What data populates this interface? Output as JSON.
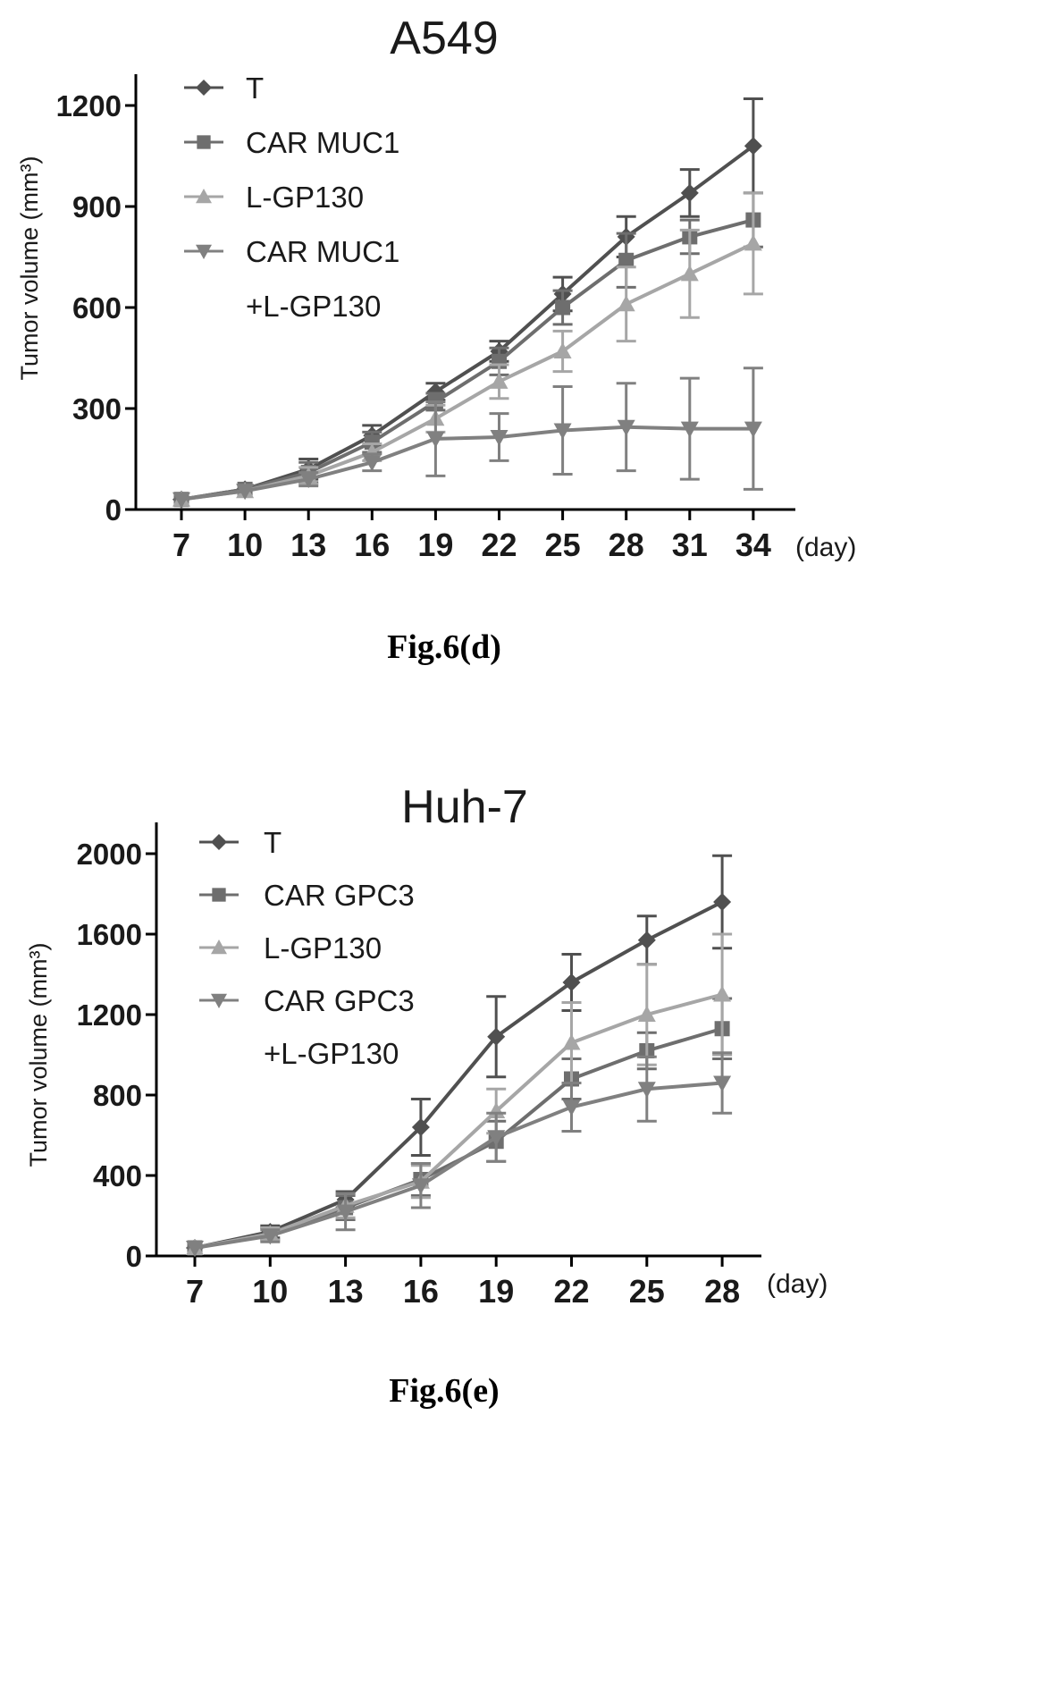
{
  "chart_data": [
    {
      "type": "line",
      "title": "A549",
      "ylabel": "Tumor volume (mm³)",
      "xunit": "(day)",
      "caption": "Fig.6(d)",
      "x": [
        7,
        10,
        13,
        16,
        19,
        22,
        25,
        28,
        31,
        34
      ],
      "yticks": [
        0,
        300,
        600,
        900,
        1200
      ],
      "ylim": [
        0,
        1200
      ],
      "legend_position": "top-left",
      "series": [
        {
          "name": "T",
          "marker": "diamond",
          "color": "#505050",
          "values": [
            30,
            60,
            120,
            220,
            350,
            470,
            640,
            810,
            940,
            1080
          ],
          "errors": [
            0,
            0,
            30,
            30,
            25,
            30,
            50,
            60,
            70,
            140
          ]
        },
        {
          "name": "CAR MUC1",
          "marker": "square",
          "color": "#6e6e6e",
          "values": [
            30,
            60,
            110,
            200,
            320,
            440,
            600,
            740,
            810,
            860
          ],
          "errors": [
            0,
            0,
            30,
            30,
            25,
            40,
            50,
            80,
            50,
            80
          ]
        },
        {
          "name": "L-GP130",
          "marker": "triangle",
          "color": "#a6a6a6",
          "values": [
            30,
            55,
            100,
            170,
            270,
            380,
            470,
            610,
            700,
            790
          ],
          "errors": [
            0,
            0,
            25,
            25,
            40,
            50,
            60,
            110,
            130,
            150
          ]
        },
        {
          "name": "CAR MUC1",
          "name2": "+L-GP130",
          "marker": "tri-down",
          "color": "#808080",
          "values": [
            30,
            55,
            90,
            140,
            210,
            215,
            235,
            245,
            240,
            240
          ],
          "errors": [
            0,
            0,
            20,
            25,
            110,
            70,
            130,
            130,
            150,
            180
          ]
        }
      ]
    },
    {
      "type": "line",
      "title": "Huh-7",
      "ylabel": "Tumor volume (mm³)",
      "xunit": "(day)",
      "caption": "Fig.6(e)",
      "x": [
        7,
        10,
        13,
        16,
        19,
        22,
        25,
        28
      ],
      "yticks": [
        0,
        400,
        800,
        1200,
        1600,
        2000
      ],
      "ylim": [
        0,
        2000
      ],
      "legend_position": "top-left",
      "series": [
        {
          "name": "T",
          "marker": "diamond",
          "color": "#505050",
          "values": [
            40,
            120,
            280,
            640,
            1090,
            1360,
            1570,
            1760
          ],
          "errors": [
            0,
            30,
            40,
            140,
            200,
            140,
            120,
            230
          ]
        },
        {
          "name": "CAR GPC3",
          "marker": "square",
          "color": "#6e6e6e",
          "values": [
            40,
            110,
            240,
            380,
            570,
            880,
            1020,
            1130
          ],
          "errors": [
            0,
            30,
            60,
            80,
            100,
            100,
            90,
            150
          ]
        },
        {
          "name": "L-GP130",
          "marker": "triangle",
          "color": "#a6a6a6",
          "values": [
            40,
            110,
            250,
            370,
            720,
            1060,
            1200,
            1300
          ],
          "errors": [
            0,
            30,
            60,
            80,
            110,
            200,
            250,
            300
          ]
        },
        {
          "name": "CAR GPC3",
          "name2": "+L-GP130",
          "marker": "tri-down",
          "color": "#808080",
          "values": [
            40,
            100,
            220,
            350,
            590,
            740,
            830,
            860
          ],
          "errors": [
            0,
            30,
            90,
            110,
            120,
            120,
            160,
            150
          ]
        }
      ]
    }
  ]
}
